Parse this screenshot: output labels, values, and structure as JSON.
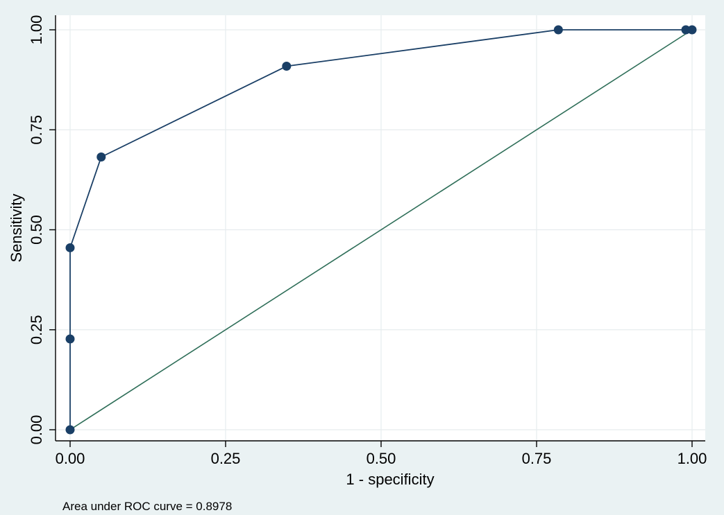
{
  "chart_data": {
    "type": "line",
    "title": "",
    "xlabel": "1 - specificity",
    "ylabel": "Sensitivity",
    "xlim": [
      0,
      1
    ],
    "ylim": [
      0,
      1
    ],
    "x_ticks": [
      0,
      0.25,
      0.5,
      0.75,
      1
    ],
    "y_ticks": [
      0,
      0.25,
      0.5,
      0.75,
      1
    ],
    "x_tick_labels": [
      "0.00",
      "0.25",
      "0.50",
      "0.75",
      "1.00"
    ],
    "y_tick_labels": [
      "0.00",
      "0.25",
      "0.50",
      "0.75",
      "1.00"
    ],
    "grid": true,
    "legend": "none",
    "series": [
      {
        "type": "line+markers",
        "color": "#1a3f66",
        "x": [
          0,
          0,
          0,
          0.05,
          0.348,
          0.785,
          0.99,
          1.0
        ],
        "y": [
          0,
          0.227,
          0.455,
          0.682,
          0.909,
          1.0,
          1.0,
          1.0
        ]
      },
      {
        "type": "line",
        "color": "#2e6e58",
        "x": [
          0,
          1
        ],
        "y": [
          0,
          1
        ]
      }
    ],
    "annotation": "Area under ROC curve = 0.8978"
  }
}
